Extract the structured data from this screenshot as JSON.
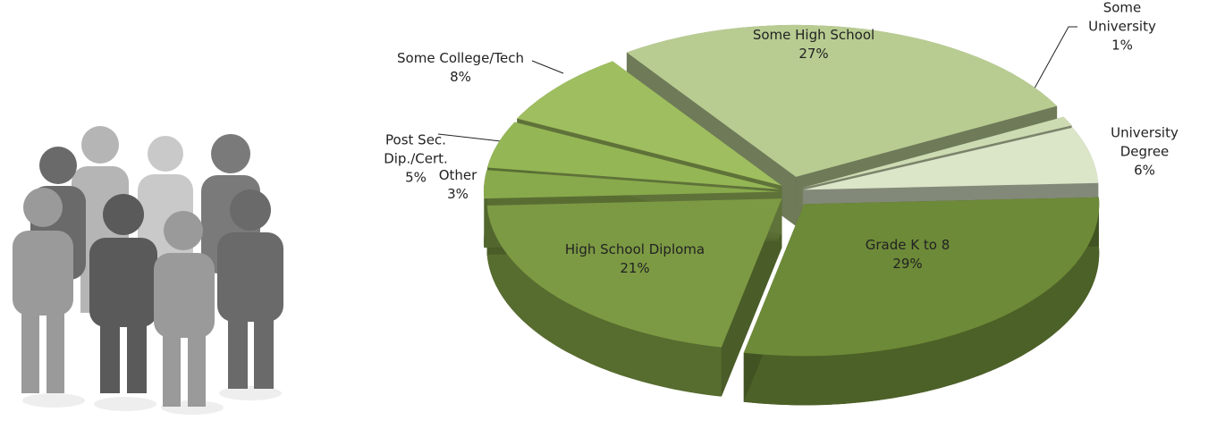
{
  "chart_data": {
    "type": "pie",
    "categories": [
      "Some High School",
      "Some University",
      "University Degree",
      "Grade K to 8",
      "High School Diploma",
      "Other",
      "Post Sec.\nDip./Cert.",
      "Some College/Tech"
    ],
    "values": [
      27,
      1,
      6,
      29,
      21,
      3,
      5,
      8
    ],
    "value_labels": [
      "27%",
      "1%",
      "6%",
      "29%",
      "21%",
      "3%",
      "5%",
      "8%"
    ],
    "colors": [
      "#b8cc92",
      "#cddbb2",
      "#dbe5c8",
      "#6d8a38",
      "#7c9a43",
      "#88aa4c",
      "#94b655",
      "#9fbe5f"
    ]
  }
}
